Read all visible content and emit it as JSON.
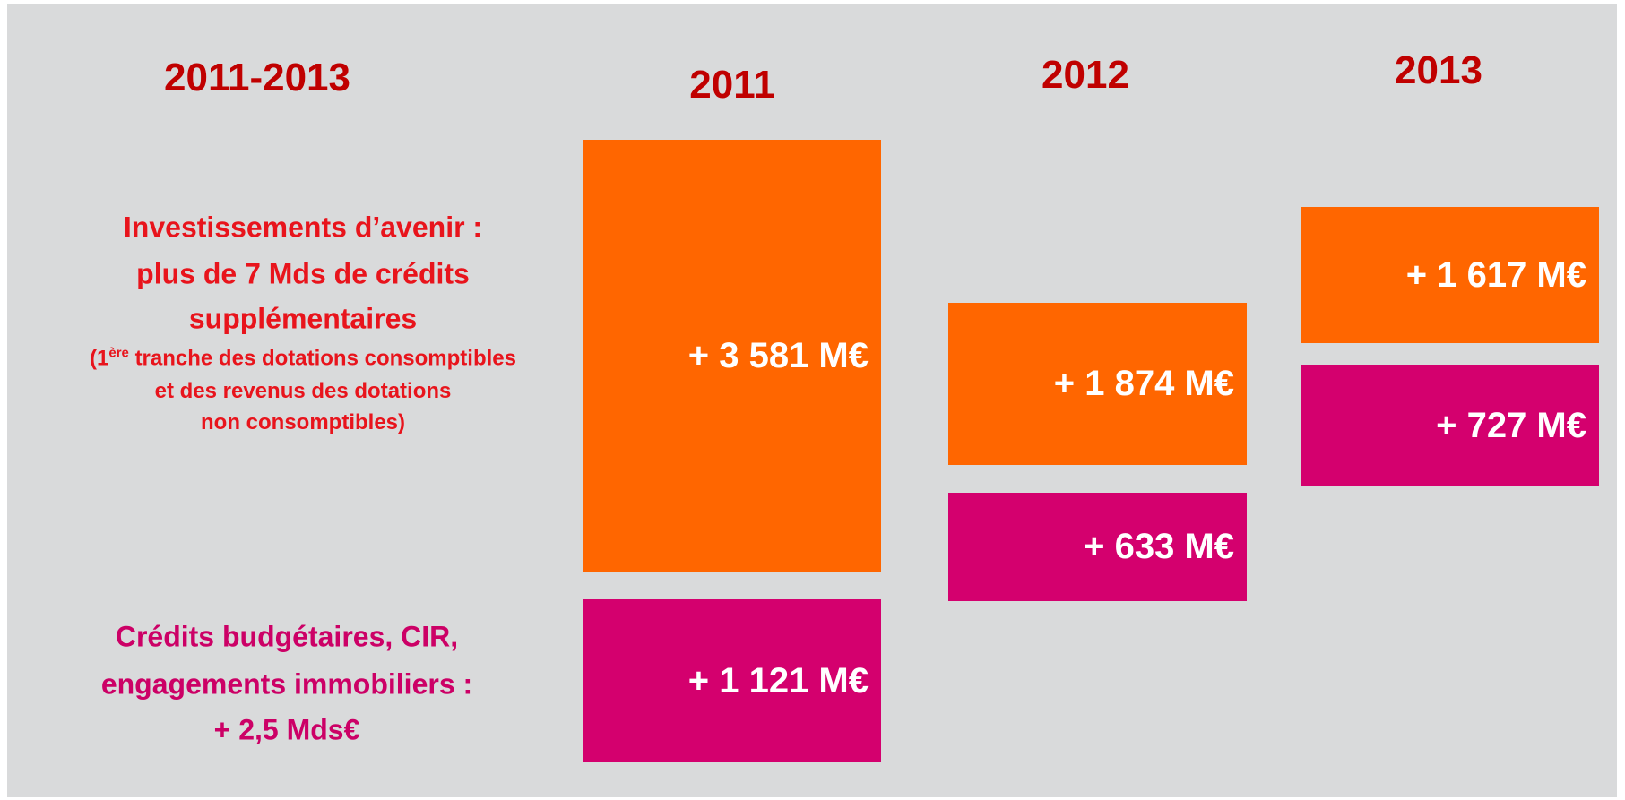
{
  "header": {
    "period": "2011-2013"
  },
  "legend": {
    "investments": {
      "lines": [
        "Investissements d’avenir :",
        "plus de 7 Mds de crédits",
        "supplémentaires"
      ],
      "note": {
        "prefix": "(1",
        "sup": "ère",
        "rest": " tranche des dotations consomptibles",
        "lines": [
          "et des revenus des dotations",
          "non consomptibles)"
        ]
      }
    },
    "credits": {
      "lines": [
        "Crédits budgétaires, CIR,",
        "engagements immobiliers :",
        "+ 2,5 Mds€"
      ]
    }
  },
  "years": [
    {
      "year": "2011",
      "investments": "+ 3 581 M€",
      "credits": "+ 1 121 M€"
    },
    {
      "year": "2012",
      "investments": "+ 1 874 M€",
      "credits": "+ 633 M€"
    },
    {
      "year": "2013",
      "investments": "+ 1 617 M€",
      "credits": "+ 727 M€"
    }
  ]
}
